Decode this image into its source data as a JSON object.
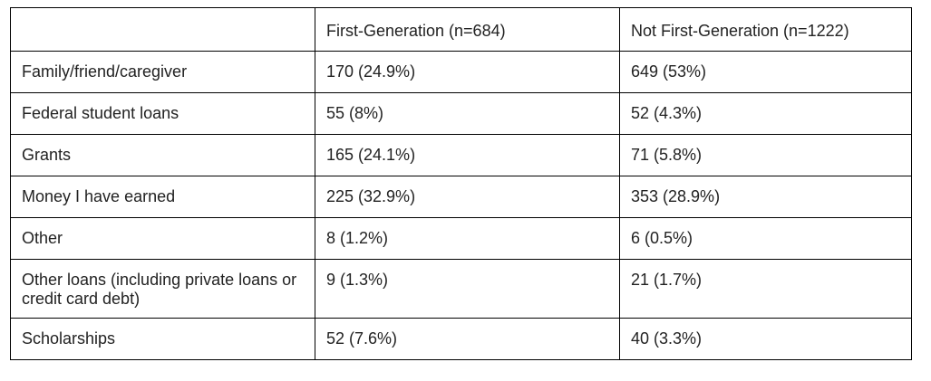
{
  "table": {
    "headers": [
      "",
      "First-Generation (n=684)",
      "Not First-Generation (n=1222)"
    ],
    "rows": [
      [
        "Family/friend/caregiver",
        "170 (24.9%)",
        "649 (53%)"
      ],
      [
        "Federal student loans",
        "55 (8%)",
        "52 (4.3%)"
      ],
      [
        "Grants",
        "165 (24.1%)",
        "71 (5.8%)"
      ],
      [
        "Money I have earned",
        "225 (32.9%)",
        "353 (28.9%)"
      ],
      [
        "Other",
        "8 (1.2%)",
        "6 (0.5%)"
      ],
      [
        "Other loans (including private loans or credit card debt)",
        "9 (1.3%)",
        "21 (1.7%)"
      ],
      [
        "Scholarships",
        "52 (7.6%)",
        "40 (3.3%)"
      ]
    ]
  }
}
